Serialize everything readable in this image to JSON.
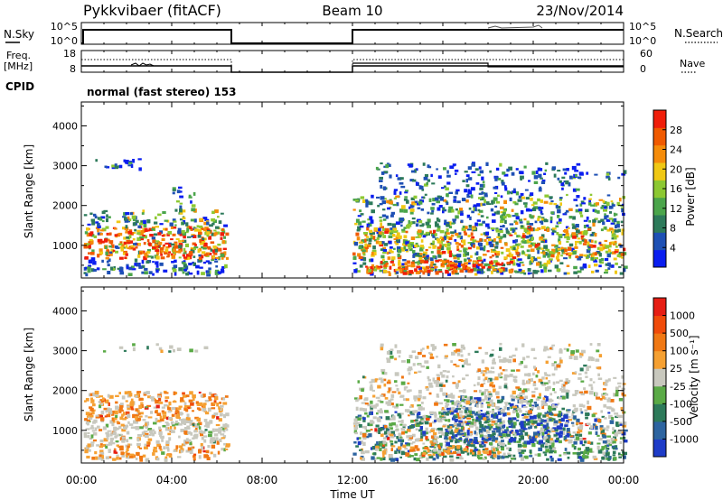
{
  "header": {
    "station": "Pykkvibaer (fitACF)",
    "beam": "Beam 10",
    "date": "23/Nov/2014"
  },
  "status_panels": {
    "nsky_label": "N.Sky",
    "nsearch_label": "N.Search",
    "noise_ticks": [
      "10^5",
      "10^0"
    ],
    "freq_label": "Freq.",
    "freq_unit": "[MHz]",
    "freq_ticks": [
      "18",
      "8"
    ],
    "nave_label": "Nave",
    "nave_ticks": [
      "60",
      "0"
    ],
    "cpid_label": "CPID",
    "cpid_text": "normal (fast stereo) 153"
  },
  "chart_data": [
    {
      "type": "heatmap",
      "panel": "power",
      "ylabel": "Slant Range [km]",
      "ylim": [
        180,
        4600
      ],
      "yticks": [
        "1000",
        "2000",
        "3000",
        "4000"
      ],
      "x_range_hours": [
        0,
        24
      ],
      "colorbar_label": "Power [dB]",
      "colorbar_ticks": [
        "28",
        "24",
        "20",
        "16",
        "12",
        "8",
        "4"
      ],
      "colors": [
        "#0a1ef0",
        "#1e50b4",
        "#2d7a5a",
        "#4ba54b",
        "#8cc832",
        "#f0c814",
        "#f58c0a",
        "#f05a00",
        "#f01e0a"
      ],
      "data_gaps_hours": [
        [
          6.5,
          12.0
        ]
      ]
    },
    {
      "type": "heatmap",
      "panel": "velocity",
      "ylabel": "Slant Range [km]",
      "ylim": [
        180,
        4600
      ],
      "yticks": [
        "1000",
        "2000",
        "3000",
        "4000"
      ],
      "x_range_hours": [
        0,
        24
      ],
      "xlabel": "Time UT",
      "xticks": [
        "00:00",
        "04:00",
        "08:00",
        "12:00",
        "16:00",
        "20:00",
        "00:00"
      ],
      "colorbar_label": "Velocity [m s⁻¹]",
      "colorbar_ticks": [
        "1000",
        "500",
        "100",
        "25",
        "-25",
        "-100",
        "-500",
        "-1000"
      ],
      "colors": [
        "#1e3cc8",
        "#2d64a0",
        "#2d7a5a",
        "#5aaa46",
        "#c8c8be",
        "#f5a032",
        "#f07814",
        "#f04b0a",
        "#e61e14"
      ],
      "data_gaps_hours": [
        [
          6.5,
          12.0
        ]
      ]
    }
  ]
}
